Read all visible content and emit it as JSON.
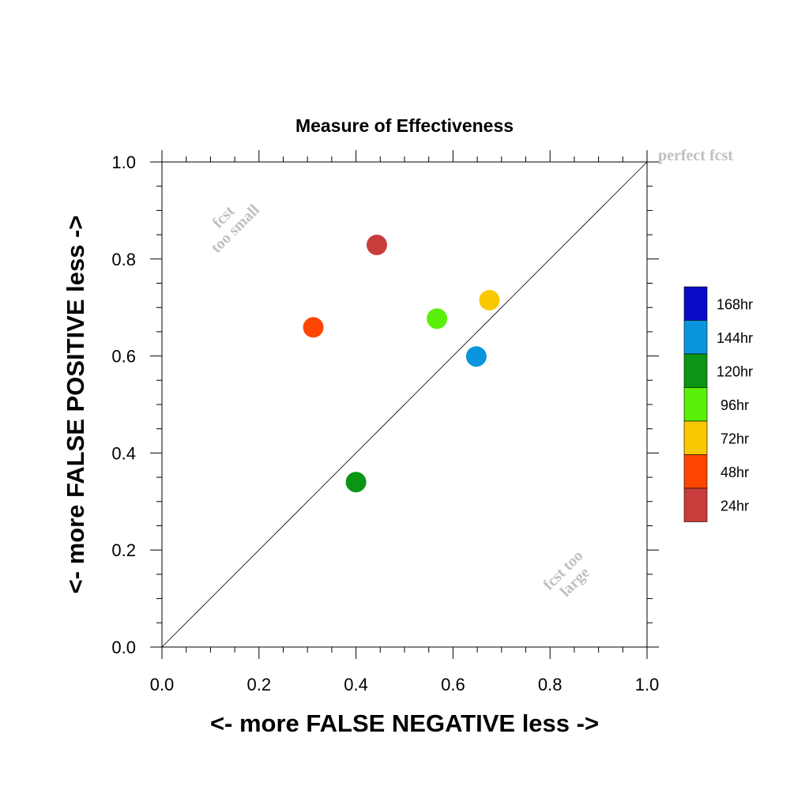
{
  "chart_data": {
    "type": "scatter",
    "title": "Measure of Effectiveness",
    "xlabel": "<- more   FALSE NEGATIVE   less ->",
    "ylabel": "<- more   FALSE POSITIVE   less ->",
    "xlim": [
      0.0,
      1.0
    ],
    "ylim": [
      0.0,
      1.0
    ],
    "x_ticks": [
      "0.0",
      "0.2",
      "0.4",
      "0.6",
      "0.8",
      "1.0"
    ],
    "y_ticks": [
      "0.0",
      "0.2",
      "0.4",
      "0.6",
      "0.8",
      "1.0"
    ],
    "grid": false,
    "reference_line": {
      "from": [
        0.0,
        0.0
      ],
      "to": [
        1.0,
        1.0
      ]
    },
    "annotations": {
      "perfect": "perfect fcst",
      "small_line1": "fcst",
      "small_line2": "too small",
      "large_line1": "fcst too",
      "large_line2": "large"
    },
    "legend_position": "right",
    "legend": [
      {
        "label": "168hr",
        "color": "#0a0ac8"
      },
      {
        "label": "144hr",
        "color": "#0a96dc"
      },
      {
        "label": "120hr",
        "color": "#0a9614"
      },
      {
        "label": "96hr",
        "color": "#5af00a"
      },
      {
        "label": "72hr",
        "color": "#fac800"
      },
      {
        "label": "48hr",
        "color": "#ff4600"
      },
      {
        "label": "24hr",
        "color": "#c83c3c"
      }
    ],
    "series": [
      {
        "name": "24hr",
        "color": "#c83c3c",
        "x": 0.443,
        "y": 0.829
      },
      {
        "name": "48hr",
        "color": "#ff4600",
        "x": 0.312,
        "y": 0.659
      },
      {
        "name": "72hr",
        "color": "#fac800",
        "x": 0.675,
        "y": 0.715
      },
      {
        "name": "96hr",
        "color": "#5af00a",
        "x": 0.567,
        "y": 0.677
      },
      {
        "name": "120hr",
        "color": "#0a9614",
        "x": 0.4,
        "y": 0.34
      },
      {
        "name": "144hr",
        "color": "#0a96dc",
        "x": 0.648,
        "y": 0.599
      }
    ]
  }
}
